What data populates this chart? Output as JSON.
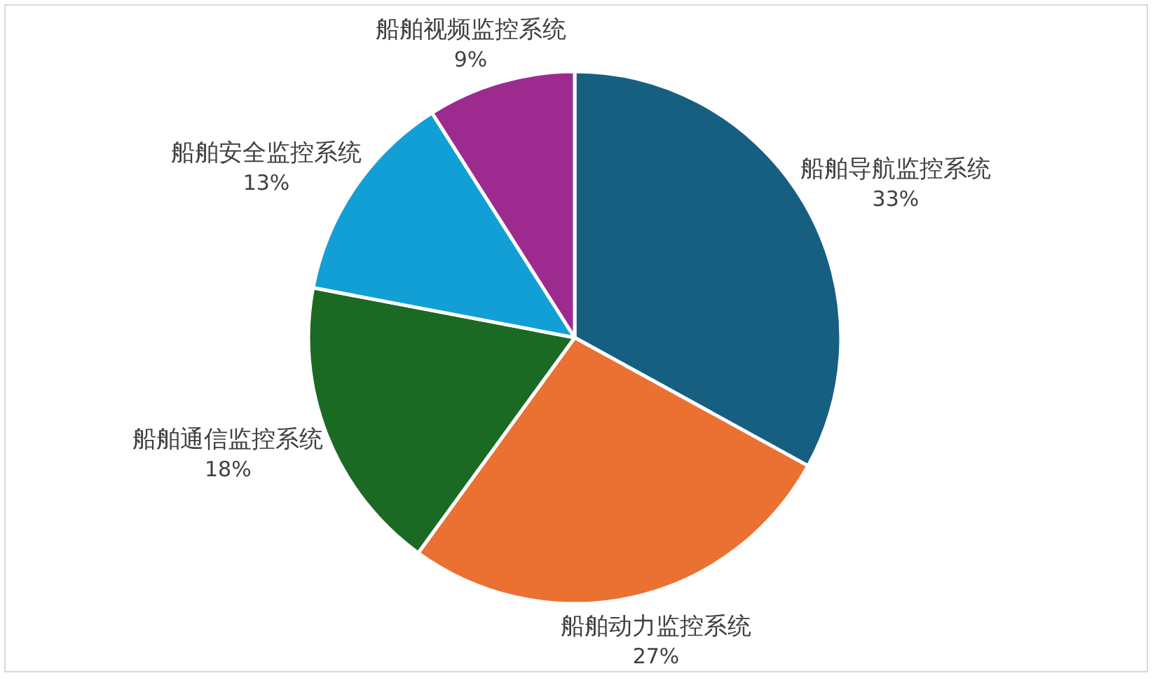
{
  "chart_data": {
    "type": "pie",
    "categories": [
      "船舶导航监控系统",
      "船舶动力监控系统",
      "船舶通信监控系统",
      "船舶安全监控系统",
      "船舶视频监控系统"
    ],
    "values": [
      33,
      27,
      18,
      13,
      9
    ],
    "colors": [
      "#175f81",
      "#eb7133",
      "#1b6a23",
      "#129fd6",
      "#9d2b8f"
    ],
    "value_labels": [
      "33%",
      "27%",
      "18%",
      "13%",
      "9%"
    ]
  }
}
